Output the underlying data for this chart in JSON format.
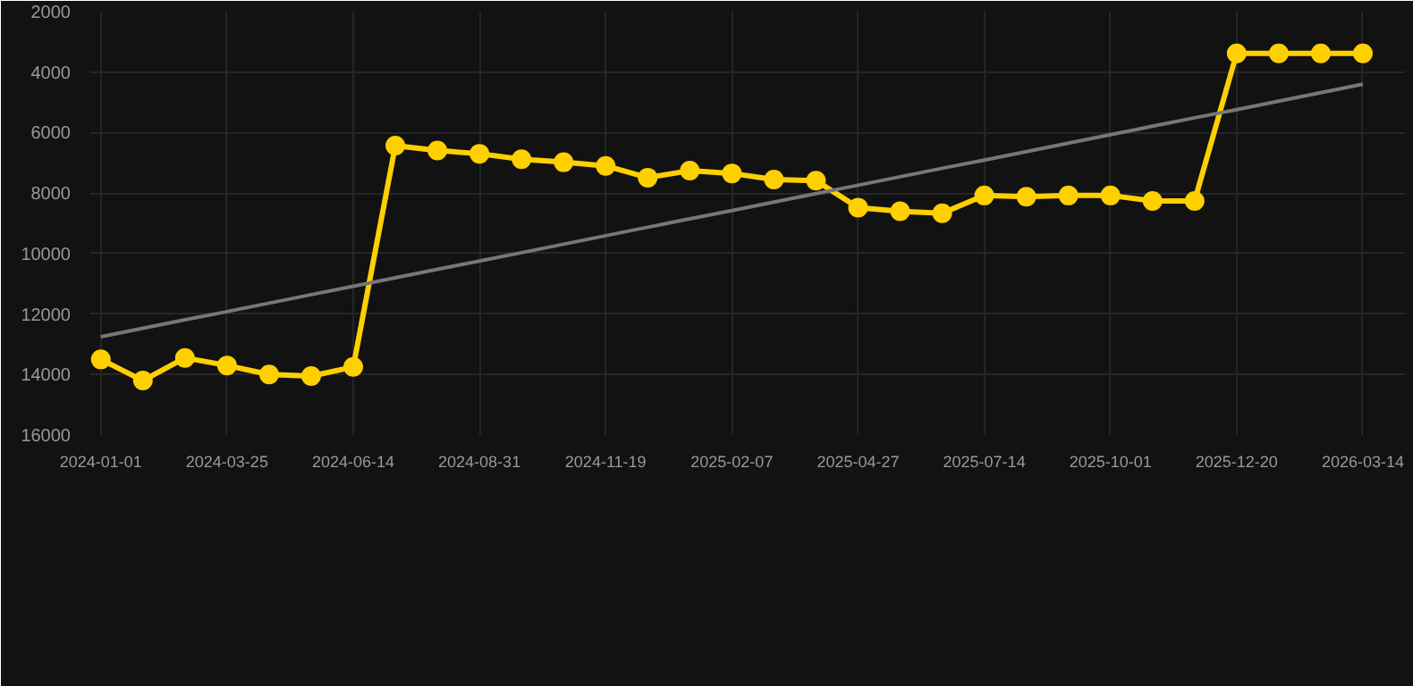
{
  "chart_data": {
    "type": "line",
    "categories": [
      "2024-01-01",
      null,
      null,
      "2024-03-25",
      null,
      null,
      "2024-06-14",
      null,
      null,
      "2024-08-31",
      null,
      null,
      "2024-11-19",
      null,
      null,
      "2025-02-07",
      null,
      null,
      "2025-04-27",
      null,
      null,
      "2025-07-14",
      null,
      null,
      "2025-10-01",
      null,
      null,
      "2025-12-20",
      null,
      null,
      "2026-03-14"
    ],
    "series": [
      {
        "color": "#ffd000",
        "values": [
          13500,
          14200,
          13450,
          13700,
          14000,
          14050,
          13750,
          6430,
          6590,
          6700,
          6880,
          6980,
          7100,
          7490,
          7260,
          7350,
          7550,
          7590,
          8480,
          8600,
          8670,
          8080,
          8120,
          8080,
          8080,
          8260,
          8260,
          3380,
          3380,
          3380,
          3380
        ],
        "marker": "circle"
      },
      {
        "type": "line",
        "color": "#777777",
        "values": [
          12750,
          12470,
          12190,
          11920,
          11640,
          11360,
          11080,
          10800,
          10520,
          10250,
          9970,
          9690,
          9410,
          9130,
          8850,
          8580,
          8300,
          8020,
          7740,
          7460,
          7180,
          6910,
          6630,
          6350,
          6070,
          5790,
          5510,
          5240,
          4960,
          4680,
          4400
        ],
        "marker": "none"
      }
    ],
    "ylim": [
      16000,
      2000
    ],
    "yticks": [
      2000,
      4000,
      6000,
      8000,
      10000,
      12000,
      14000,
      16000
    ],
    "grid": true
  }
}
